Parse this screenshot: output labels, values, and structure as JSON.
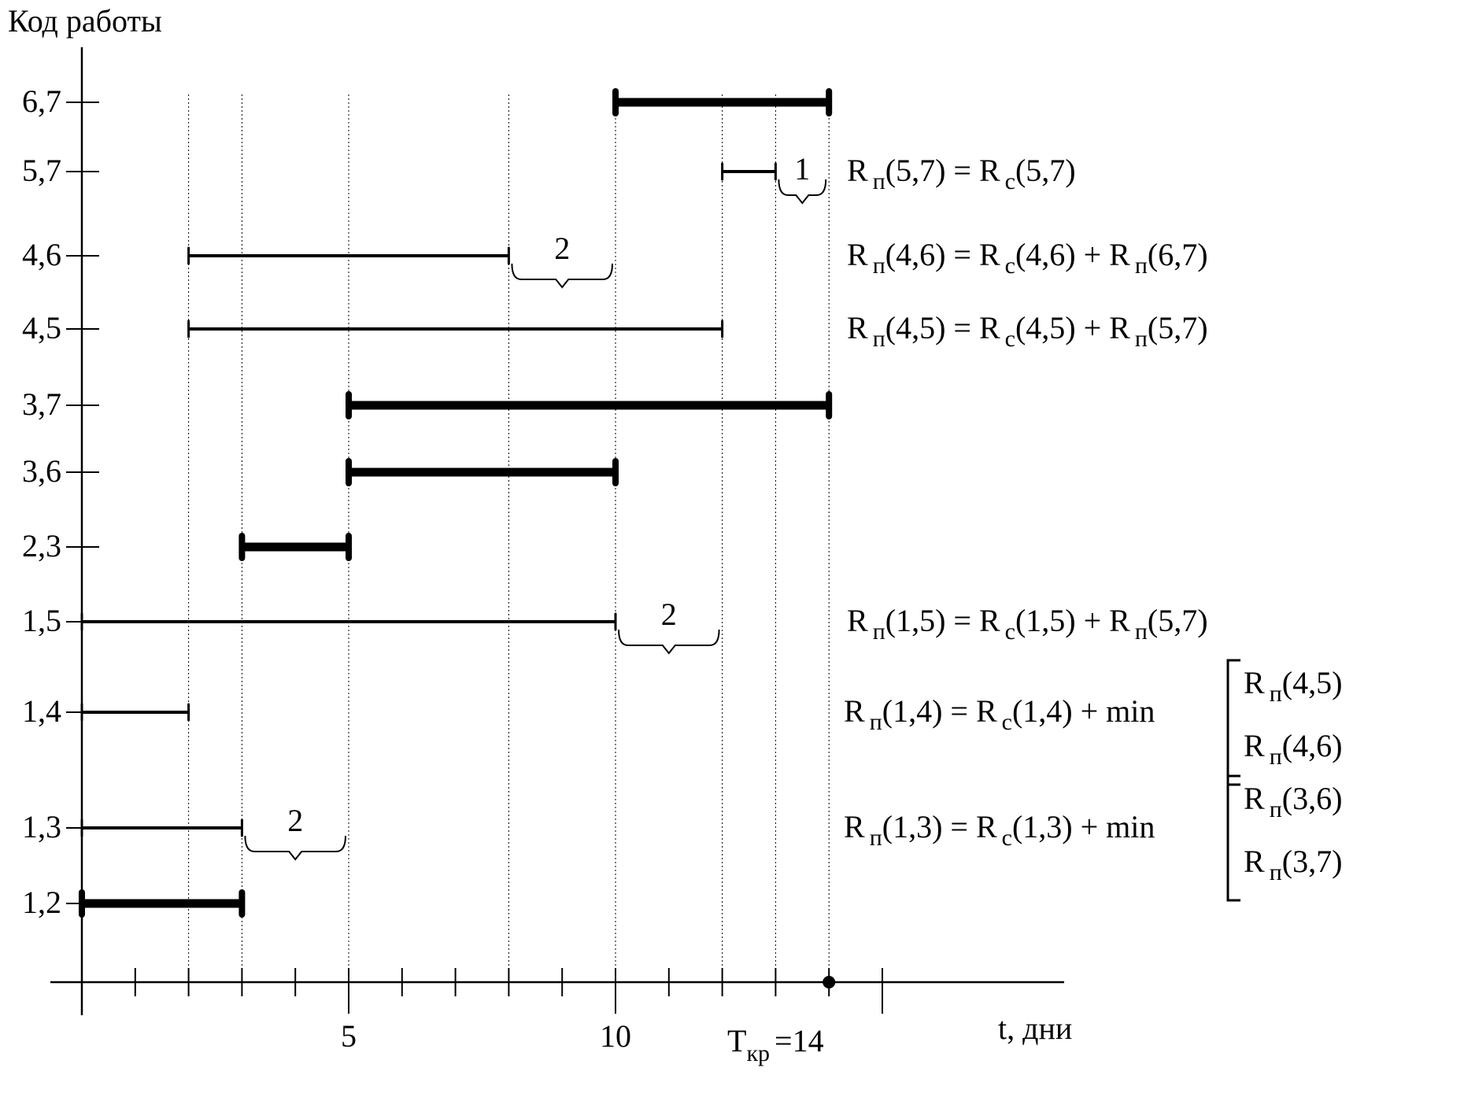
{
  "chart_data": {
    "type": "gantt",
    "ylabel": "Код работы",
    "xlabel": "t, дни",
    "xlim": [
      0,
      15
    ],
    "x_ticks_major_labeled": [
      5,
      10
    ],
    "critical_time": {
      "label": "T",
      "subscript": "кр",
      "equals": "=14",
      "value": 14
    },
    "tasks": [
      {
        "code": "6,7",
        "start": 10,
        "end": 14,
        "critical": true
      },
      {
        "code": "5,7",
        "start": 12,
        "end": 13,
        "critical": false
      },
      {
        "code": "4,6",
        "start": 2,
        "end": 8,
        "critical": false
      },
      {
        "code": "4,5",
        "start": 2,
        "end": 12,
        "critical": false
      },
      {
        "code": "3,7",
        "start": 5,
        "end": 14,
        "critical": true
      },
      {
        "code": "3,6",
        "start": 5,
        "end": 10,
        "critical": true
      },
      {
        "code": "2,3",
        "start": 3,
        "end": 5,
        "critical": true
      },
      {
        "code": "1,5",
        "start": 0,
        "end": 10,
        "critical": false
      },
      {
        "code": "1,4",
        "start": 0,
        "end": 2,
        "critical": false
      },
      {
        "code": "1,3",
        "start": 0,
        "end": 3,
        "critical": false
      },
      {
        "code": "1,2",
        "start": 0,
        "end": 3,
        "critical": true
      }
    ],
    "reserves": [
      {
        "task": "5,7",
        "from": 13,
        "to": 14,
        "label": "1"
      },
      {
        "task": "4,6",
        "from": 8,
        "to": 10,
        "label": "2"
      },
      {
        "task": "1,5",
        "from": 10,
        "to": 12,
        "label": "2"
      },
      {
        "task": "1,3",
        "from": 3,
        "to": 5,
        "label": "2"
      }
    ],
    "formulas": [
      {
        "row": "5,7",
        "left": "R",
        "lsub": "п",
        "largs": "(5,7)",
        "rhs": "= R",
        "rsub": "с",
        "rargs": "(5,7)"
      },
      {
        "row": "4,6",
        "left": "R",
        "lsub": "п",
        "largs": "(4,6)",
        "rhs": "= R",
        "rsub": "с",
        "rargs": "(4,6) + R",
        "rsub2": "п",
        "rargs2": "(6,7)"
      },
      {
        "row": "4,5",
        "left": "R",
        "lsub": "п",
        "largs": "(4,5)",
        "rhs": "= R",
        "rsub": "с",
        "rargs": "(4,5) + R",
        "rsub2": "п",
        "rargs2": "(5,7)"
      },
      {
        "row": "1,5",
        "left": "R",
        "lsub": "п",
        "largs": "(1,5)",
        "rhs": "= R",
        "rsub": "с",
        "rargs": "(1,5) + R",
        "rsub2": "п",
        "rargs2": "(5,7)"
      }
    ],
    "min_formulas": [
      {
        "row": "1,4",
        "left": "R",
        "lsub": "п",
        "largs": "(1,4)",
        "rhs": "= R",
        "rsub": "с",
        "rargs": "(1,4) + min",
        "options": [
          {
            "r": "R",
            "sub": "п",
            "args": "(4,5)"
          },
          {
            "r": "R",
            "sub": "п",
            "args": "(4,6)"
          }
        ]
      },
      {
        "row": "1,3",
        "left": "R",
        "lsub": "п",
        "largs": "(1,3)",
        "rhs": "= R",
        "rsub": "с",
        "rargs": "(1,3) + min",
        "options": [
          {
            "r": "R",
            "sub": "п",
            "args": "(3,6)"
          },
          {
            "r": "R",
            "sub": "п",
            "args": "(3,7)"
          }
        ]
      }
    ]
  }
}
